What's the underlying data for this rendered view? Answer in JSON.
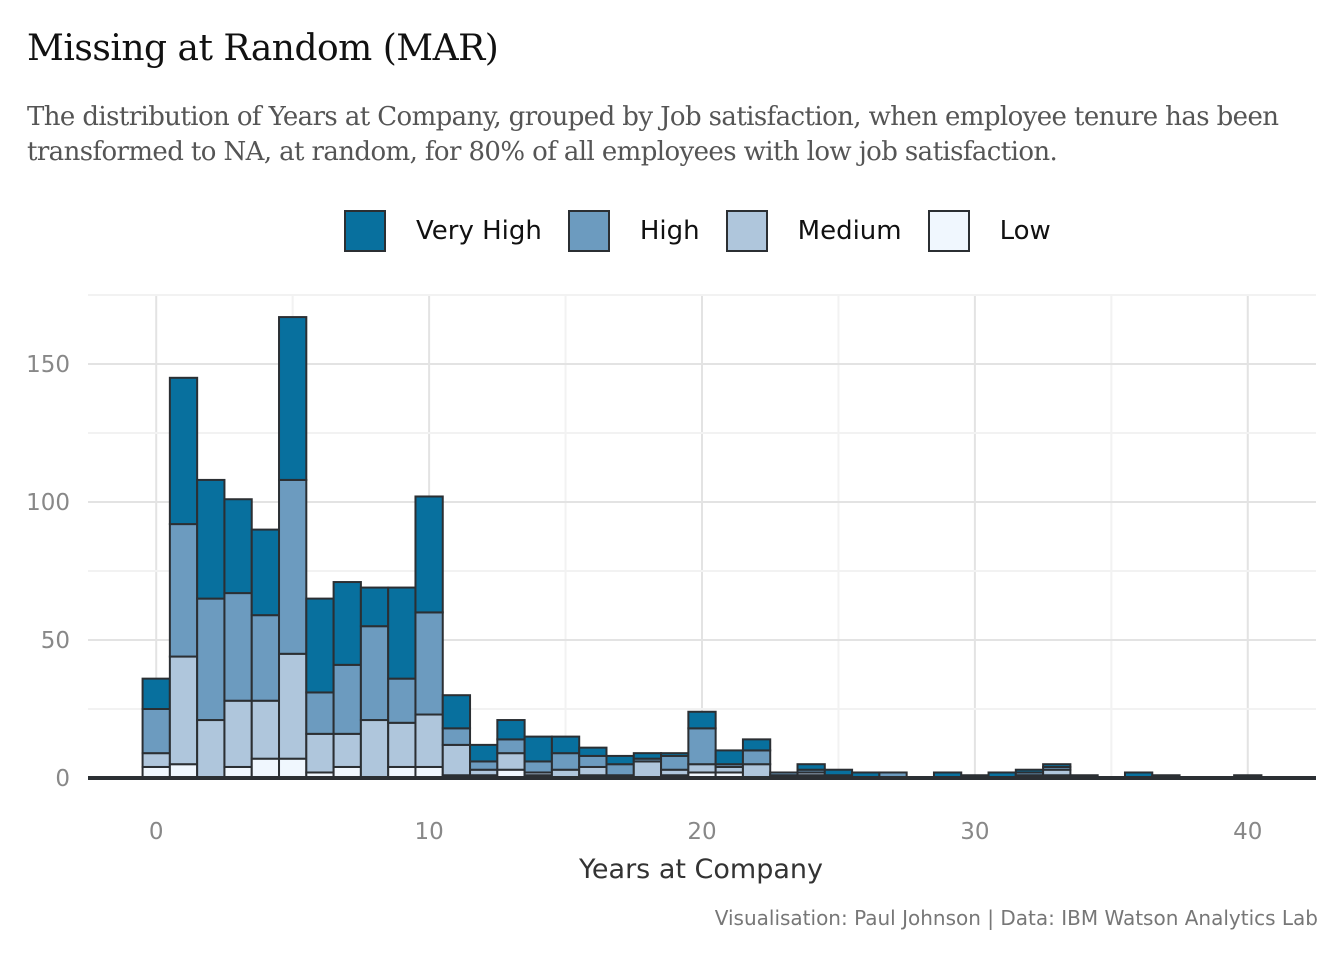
{
  "header": {
    "title": "Missing at Random (MAR)",
    "subtitle": "The distribution of Years at Company, grouped by Job satisfaction, when employee tenure has been transformed to NA, at random, for 80% of all employees with low job satisfaction."
  },
  "caption": "Visualisation: Paul Johnson  |  Data: IBM Watson Analytics Lab",
  "chart_data": {
    "type": "bar",
    "subtype": "stacked-histogram",
    "title": "Missing at Random (MAR)",
    "xlabel": "Years at Company",
    "ylabel": "",
    "xlim": [
      -2.5,
      42.5
    ],
    "ylim": [
      0,
      175
    ],
    "x_ticks": [
      0,
      10,
      20,
      30,
      40
    ],
    "y_ticks": [
      0,
      50,
      100,
      150
    ],
    "grid": true,
    "legend_position": "top",
    "colors": {
      "Very High": "#08709e",
      "High": "#6c9bbf",
      "Medium": "#afc6dc",
      "Low": "#f0f7fe",
      "outline": "#2b2f33"
    },
    "x": [
      0,
      1,
      2,
      3,
      4,
      5,
      6,
      7,
      8,
      9,
      10,
      11,
      12,
      13,
      14,
      15,
      16,
      17,
      18,
      19,
      20,
      21,
      22,
      23,
      24,
      25,
      26,
      27,
      28,
      29,
      30,
      31,
      32,
      33,
      34,
      35,
      36,
      37,
      38,
      39,
      40
    ],
    "series": [
      {
        "name": "Low",
        "values": [
          4,
          5,
          0,
          4,
          7,
          7,
          2,
          4,
          0,
          4,
          4,
          1,
          1,
          3,
          1,
          0,
          1,
          1,
          0,
          1,
          2,
          2,
          0,
          0,
          1,
          0,
          0,
          0,
          0,
          0,
          0,
          0,
          0,
          1,
          0,
          0,
          0,
          0,
          0,
          0,
          0
        ]
      },
      {
        "name": "Medium",
        "values": [
          5,
          39,
          21,
          24,
          21,
          38,
          14,
          12,
          21,
          16,
          19,
          11,
          2,
          6,
          1,
          3,
          3,
          0,
          6,
          2,
          3,
          2,
          5,
          1,
          1,
          0,
          0,
          0,
          0,
          0,
          0,
          0,
          1,
          2,
          0,
          0,
          0,
          0,
          0,
          0,
          0
        ]
      },
      {
        "name": "High",
        "values": [
          16,
          48,
          44,
          39,
          31,
          63,
          15,
          25,
          34,
          16,
          37,
          6,
          3,
          5,
          4,
          6,
          4,
          4,
          1,
          5,
          13,
          1,
          5,
          1,
          1,
          1,
          0,
          2,
          0,
          0,
          0,
          0,
          1,
          1,
          0,
          0,
          0,
          0,
          0,
          0,
          0
        ]
      },
      {
        "name": "Very High",
        "values": [
          11,
          53,
          43,
          34,
          31,
          59,
          34,
          30,
          14,
          33,
          42,
          12,
          6,
          7,
          9,
          6,
          3,
          3,
          2,
          1,
          6,
          5,
          4,
          0,
          2,
          2,
          2,
          0,
          0,
          2,
          1,
          2,
          1,
          1,
          1,
          0,
          2,
          1,
          0,
          0,
          1
        ]
      }
    ]
  }
}
